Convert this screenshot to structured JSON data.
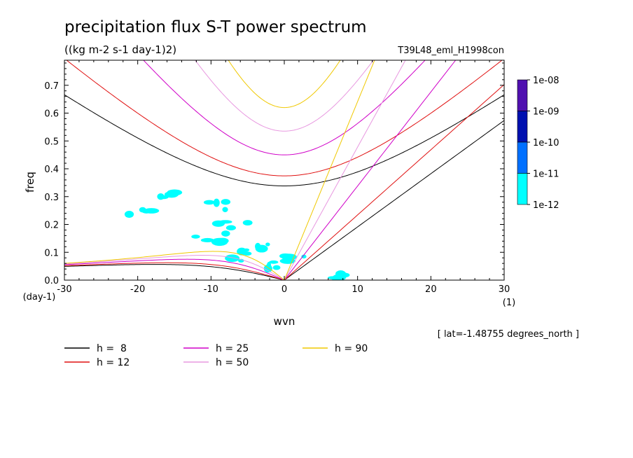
{
  "chart_data": {
    "type": "line",
    "title": "precipitation flux S-T power spectrum",
    "subtitle": "((kg m-2 s-1 day-1)2)",
    "experiment": "T39L48_eml_H1998con",
    "xlabel": "wvn",
    "ylabel": "freq",
    "x_unit": "(1)",
    "y_unit": "(day-1)",
    "latitude_note": "[ lat=-1.48755 degrees_north ]",
    "xlim": [
      -30,
      30
    ],
    "ylim": [
      0,
      0.79
    ],
    "x_ticks": [
      "-30",
      "-20",
      "-10",
      "0",
      "10",
      "20",
      "30"
    ],
    "y_ticks": [
      "0.0",
      "0.1",
      "0.2",
      "0.3",
      "0.4",
      "0.5",
      "0.6",
      "0.7"
    ],
    "series": [
      {
        "name": "h =  8",
        "color": "#000000",
        "h": 8
      },
      {
        "name": "h = 12",
        "color": "#e01010",
        "h": 12
      },
      {
        "name": "h = 25",
        "color": "#d000c8",
        "h": 25
      },
      {
        "name": "h = 50",
        "color": "#e898e0",
        "h": 50
      },
      {
        "name": "h = 90",
        "color": "#f0c800",
        "h": 90
      }
    ],
    "colorbar": {
      "labels": [
        "1e-08",
        "1e-09",
        "1e-10",
        "1e-11",
        "1e-12"
      ],
      "colors": [
        "#5010b0",
        "#0010b0",
        "#0070ff",
        "#00ffff"
      ]
    },
    "contour_fill": {
      "level": "1e-12 to 1e-11",
      "color": "#00ffff",
      "regions": [
        {
          "x": -15,
          "y": 0.3
        },
        {
          "x": -10,
          "y": 0.27
        },
        {
          "x": -20,
          "y": 0.24
        },
        {
          "x": -7,
          "y": 0.2
        },
        {
          "x": -10,
          "y": 0.15
        },
        {
          "x": -4,
          "y": 0.12
        },
        {
          "x": -5,
          "y": 0.08
        },
        {
          "x": -2,
          "y": 0.05
        },
        {
          "x": 1,
          "y": 0.07
        },
        {
          "x": 6,
          "y": 0.02
        }
      ]
    }
  }
}
